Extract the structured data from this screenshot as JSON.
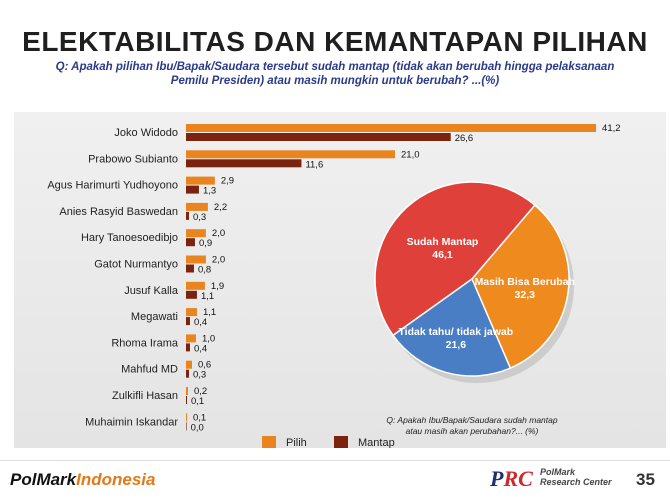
{
  "title": "ELEKTABILITAS DAN KEMANTAPAN PILIHAN",
  "subtitle": "Q: Apakah pilihan Ibu/Bapak/Saudara tersebut sudah mantap (tidak akan berubah hingga pelaksanaan Pemilu Presiden) atau masih mungkin untuk berubah? ...(%)",
  "footer": {
    "logo_main": "PolMark",
    "logo_accent": "Indonesia",
    "prc_left": "P",
    "prc_right": "RC",
    "prc_sub_1": "PolMark",
    "prc_sub_2": "Research Center",
    "page_number": "35"
  },
  "colors": {
    "pilih": "#e9841f",
    "mantap": "#7a2410",
    "pie_mantap": "#e0403a",
    "pie_berubah": "#ef8a1e",
    "pie_tidaktahu": "#4a7ec4"
  },
  "chart_data": [
    {
      "type": "bar",
      "orientation": "horizontal",
      "categories": [
        "Joko Widodo",
        "Prabowo Subianto",
        "Agus Harimurti Yudhoyono",
        "Anies Rasyid Baswedan",
        "Hary Tanoesoedibjo",
        "Gatot Nurmantyo",
        "Jusuf Kalla",
        "Megawati",
        "Rhoma Irama",
        "Mahfud MD",
        "Zulkifli Hasan",
        "Muhaimin Iskandar"
      ],
      "series": [
        {
          "name": "Pilih",
          "values": [
            41.2,
            21.0,
            2.9,
            2.2,
            2.0,
            2.0,
            1.9,
            1.1,
            1.0,
            0.6,
            0.2,
            0.1
          ],
          "labels": [
            "41,2",
            "21,0",
            "2,9",
            "2,2",
            "2,0",
            "2,0",
            "1,9",
            "1,1",
            "1,0",
            "0,6",
            "0,2",
            "0,1"
          ]
        },
        {
          "name": "Mantap",
          "values": [
            26.6,
            11.6,
            1.3,
            0.3,
            0.9,
            0.8,
            1.1,
            0.4,
            0.4,
            0.3,
            0.1,
            0.0
          ],
          "labels": [
            "26,6",
            "11,6",
            "1,3",
            "0,3",
            "0,9",
            "0,8",
            "1,1",
            "0,4",
            "0,4",
            "0,3",
            "0,1",
            "0,0"
          ]
        }
      ],
      "legend": [
        "Pilih",
        "Mantap"
      ],
      "legend_position": "bottom"
    },
    {
      "type": "pie",
      "labels": [
        "Sudah Mantap",
        "Masih Bisa Berubah",
        "Tidak tahu/ tidak jawab"
      ],
      "values": [
        46.1,
        32.3,
        21.6
      ],
      "value_labels": [
        "46,1",
        "32,3",
        "21,6"
      ],
      "note": "Q: Apakah Ibu/Bapak/Saudara sudah mantap atau masih akan perubahan?... (%)"
    }
  ]
}
